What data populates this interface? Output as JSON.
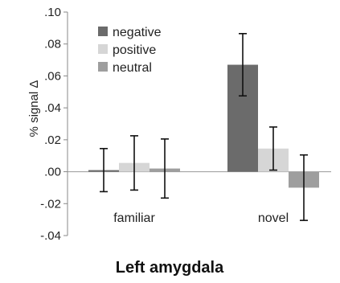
{
  "chart_data": {
    "type": "bar",
    "title": "Left amygdala",
    "ylabel": "% signal Δ",
    "xlabel": "",
    "categories": [
      "familiar",
      "novel"
    ],
    "ylim": [
      -0.04,
      0.1
    ],
    "yticks": [
      ".10",
      ".08",
      ".06",
      ".04",
      ".02",
      ".00",
      "-.02",
      "-.04"
    ],
    "legend_position": "top-left",
    "grid": false,
    "series": [
      {
        "name": "negative",
        "color": "#6b6b6b",
        "values": [
          0.001,
          0.067
        ],
        "error": [
          0.0135,
          0.0195
        ]
      },
      {
        "name": "positive",
        "color": "#d6d6d6",
        "values": [
          0.0055,
          0.0145
        ],
        "error": [
          0.017,
          0.0135
        ]
      },
      {
        "name": "neutral",
        "color": "#9e9e9e",
        "values": [
          0.002,
          -0.01
        ],
        "error": [
          0.0185,
          0.0205
        ]
      }
    ]
  }
}
